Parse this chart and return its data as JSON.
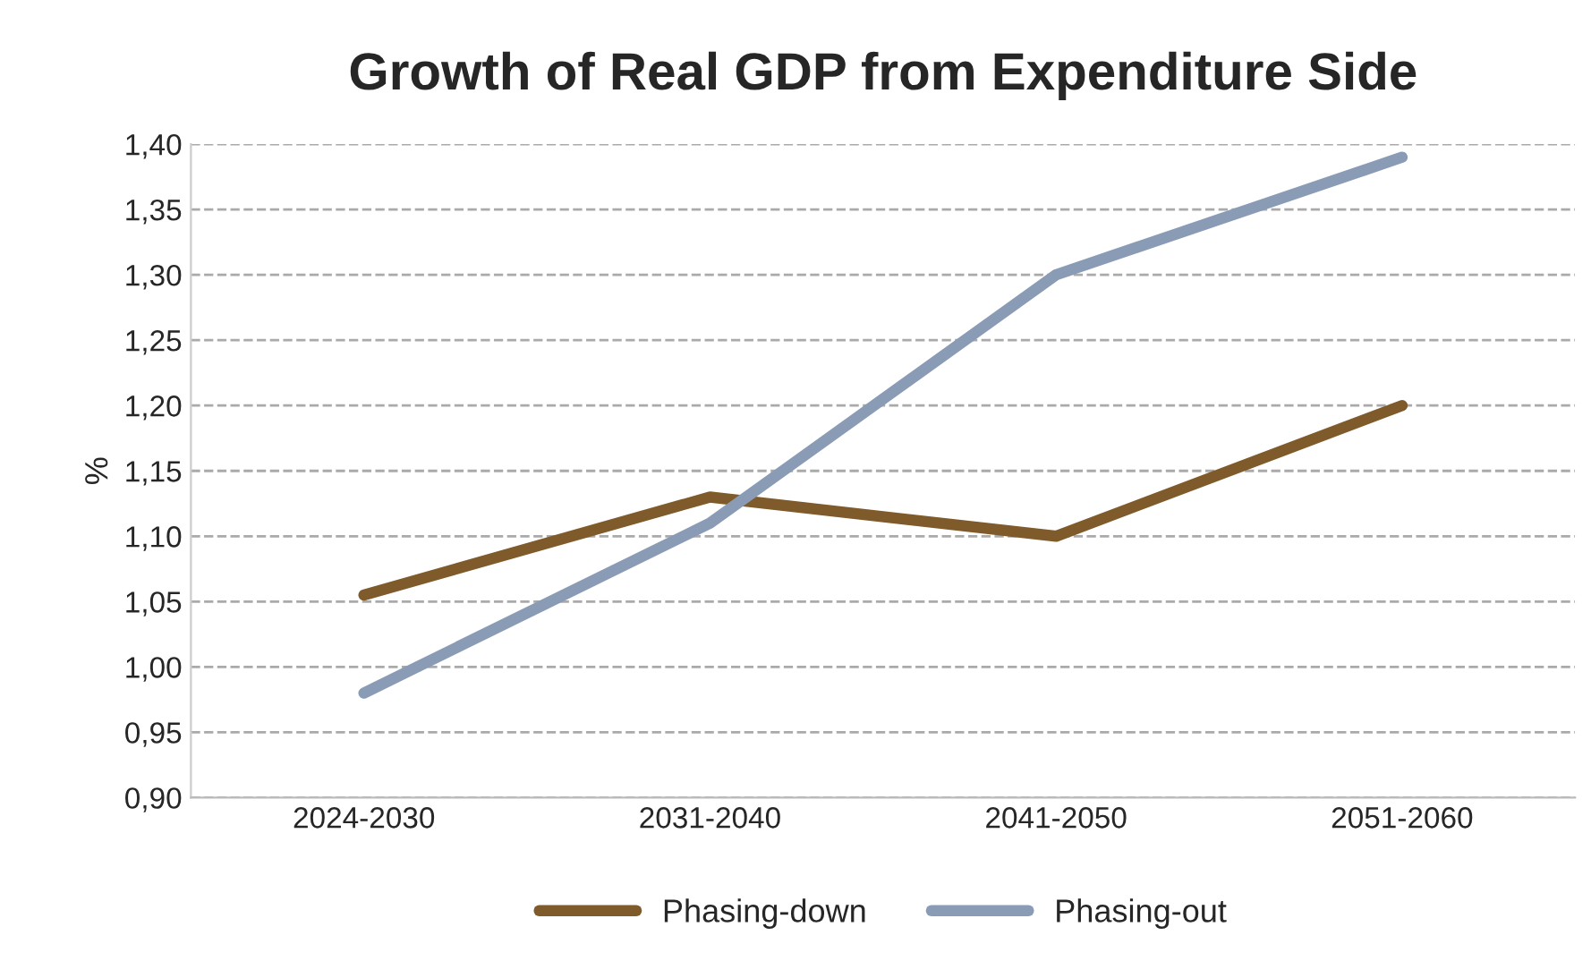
{
  "chart_data": {
    "type": "line",
    "title": "Growth of Real GDP from Expenditure Side",
    "ylabel": "%",
    "categories": [
      "2024-2030",
      "2031-2040",
      "2041-2050",
      "2051-2060"
    ],
    "series": [
      {
        "name": "Phasing-down",
        "color": "#7f5a2a",
        "values": [
          1.055,
          1.13,
          1.1,
          1.2
        ]
      },
      {
        "name": "Phasing-out",
        "color": "#8a9bb5",
        "values": [
          0.98,
          1.11,
          1.3,
          1.39
        ]
      }
    ],
    "ylim": [
      0.9,
      1.4
    ],
    "yticks": [
      {
        "value": 0.9,
        "label": "0,90"
      },
      {
        "value": 0.95,
        "label": "0,95"
      },
      {
        "value": 1.0,
        "label": "1,00"
      },
      {
        "value": 1.05,
        "label": "1,05"
      },
      {
        "value": 1.1,
        "label": "1,10"
      },
      {
        "value": 1.15,
        "label": "1,15"
      },
      {
        "value": 1.2,
        "label": "1,20"
      },
      {
        "value": 1.25,
        "label": "1,25"
      },
      {
        "value": 1.3,
        "label": "1,30"
      },
      {
        "value": 1.35,
        "label": "1,35"
      },
      {
        "value": 1.4,
        "label": "1,40"
      }
    ],
    "grid": "y",
    "legend": "bottom",
    "marker": "none",
    "line_style": "solid"
  }
}
